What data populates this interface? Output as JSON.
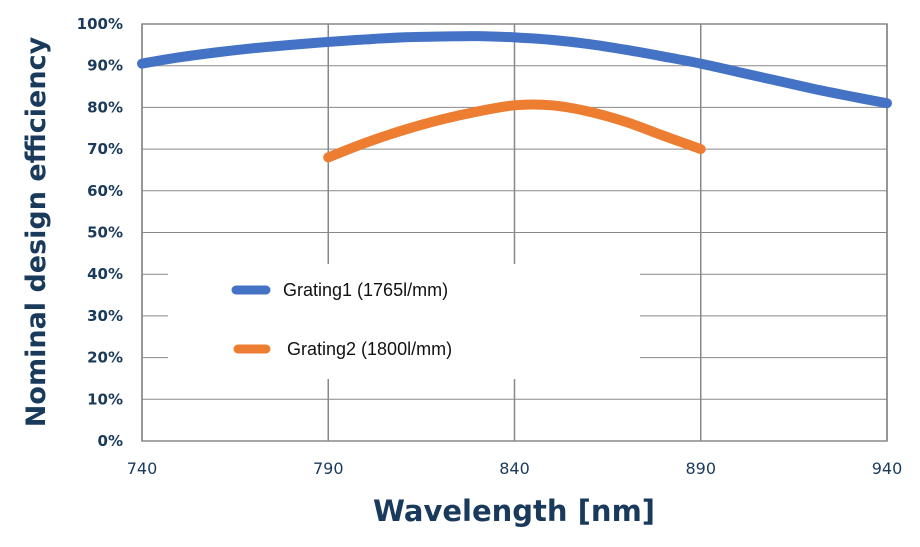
{
  "chart_data": {
    "type": "line",
    "xlabel": "Wavelength [nm]",
    "ylabel": "Nominal design efficiency",
    "xlim": [
      740,
      940
    ],
    "ylim": [
      0,
      100
    ],
    "x_ticks": [
      "740",
      "790",
      "840",
      "890",
      "940"
    ],
    "y_ticks": [
      "0%",
      "10%",
      "20%",
      "30%",
      "40%",
      "50%",
      "60%",
      "70%",
      "80%",
      "90%",
      "100%"
    ],
    "grid": true,
    "legend_position": "center-left",
    "series": [
      {
        "name": "Grating1 (1765l/mm)",
        "color": "#4472c4",
        "x": [
          740,
          750,
          760,
          770,
          780,
          790,
          800,
          810,
          820,
          830,
          840,
          850,
          860,
          870,
          880,
          890,
          900,
          910,
          920,
          930,
          940
        ],
        "y": [
          90.5,
          92,
          93.2,
          94.2,
          95,
          95.7,
          96.3,
          96.8,
          97,
          97.1,
          96.8,
          96.2,
          95.2,
          93.8,
          92.2,
          90.5,
          88.5,
          86.5,
          84.5,
          82.7,
          81
        ]
      },
      {
        "name": "Grating2 (1800l/mm)",
        "color": "#ed7d31",
        "x": [
          790,
          800,
          810,
          820,
          830,
          840,
          850,
          860,
          870,
          880,
          890
        ],
        "y": [
          68,
          71.5,
          74.5,
          77,
          79,
          80.5,
          80.5,
          79,
          76.5,
          73.2,
          70
        ]
      }
    ]
  }
}
